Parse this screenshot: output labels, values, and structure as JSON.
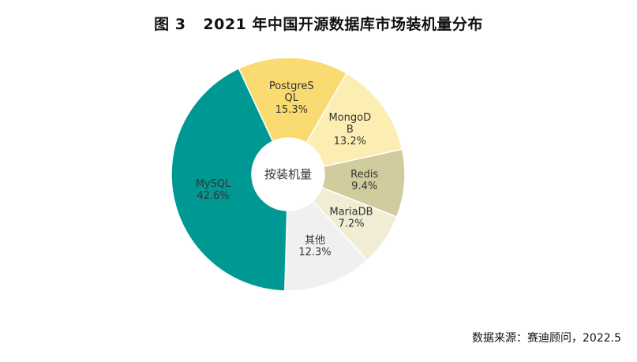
{
  "title": {
    "figure": "图 3",
    "text": "2021 年中国开源数据库市场装机量分布"
  },
  "source": "数据来源：赛迪顾问，2022.5",
  "chart_data": {
    "type": "pie",
    "center_label": "按装机量",
    "slices": [
      {
        "name": "PostgreSQL",
        "label_lines": [
          "PostgreS",
          "QL"
        ],
        "value_label": "15.3%",
        "value": 15.3,
        "color": "#FADB71"
      },
      {
        "name": "MongoDB",
        "label_lines": [
          "MongoD",
          "B"
        ],
        "value_label": "13.2%",
        "value": 13.2,
        "color": "#FCEDB3"
      },
      {
        "name": "Redis",
        "label_lines": [
          "Redis"
        ],
        "value_label": "9.4%",
        "value": 9.4,
        "color": "#D1CC9E"
      },
      {
        "name": "MariaDB",
        "label_lines": [
          "MariaDB"
        ],
        "value_label": "7.2%",
        "value": 7.2,
        "color": "#F0EDD4"
      },
      {
        "name": "其他",
        "label_lines": [
          "其他"
        ],
        "value_label": "12.3%",
        "value": 12.3,
        "color": "#F0F0F0"
      },
      {
        "name": "MySQL",
        "label_lines": [
          "MySQL"
        ],
        "value_label": "42.6%",
        "value": 42.6,
        "color": "#009893"
      }
    ]
  }
}
